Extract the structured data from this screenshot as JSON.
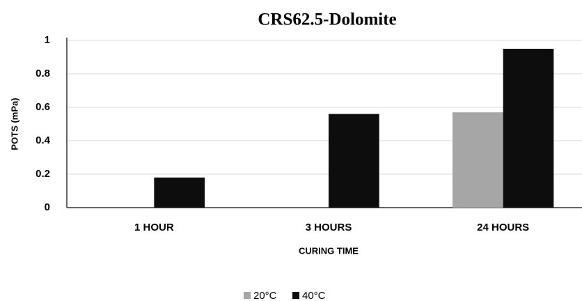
{
  "chart_data": {
    "type": "bar",
    "title": "CRS62.5-Dolomite",
    "x_label": "CURING TIME",
    "y_label": "POTS (mPa)",
    "categories": [
      "1 HOUR",
      "3 HOURS",
      "24 HOURS"
    ],
    "series": [
      {
        "name": "20°C",
        "color": "#a6a6a6",
        "values": [
          0,
          0,
          0.57
        ]
      },
      {
        "name": "40°C",
        "color": "#0d0d0d",
        "values": [
          0.18,
          0.56,
          0.95
        ]
      }
    ],
    "ylim": [
      0,
      1
    ],
    "yticks": [
      0,
      0.2,
      0.4,
      0.6,
      0.8,
      1
    ],
    "grid": true,
    "legend": "bottom"
  }
}
